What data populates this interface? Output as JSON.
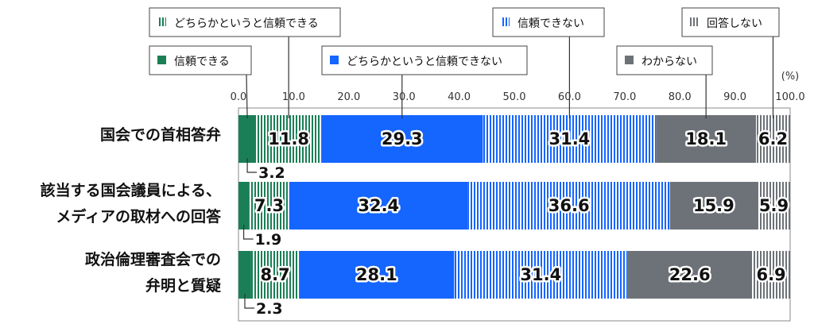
{
  "chart_data": {
    "type": "bar",
    "orientation": "horizontal",
    "stacked": true,
    "unit": "(%)",
    "xlim": [
      0,
      100
    ],
    "x_ticks": [
      "0.0",
      "10.0",
      "20.0",
      "30.0",
      "40.0",
      "50.0",
      "60.0",
      "70.0",
      "80.0",
      "90.0",
      "100.0"
    ],
    "categories": [
      [
        "国会での首相答弁"
      ],
      [
        "該当する国会議員による、",
        "メディアの取材への回答"
      ],
      [
        "政治倫理審査会での",
        "弁明と質疑"
      ]
    ],
    "series": [
      {
        "name": "信頼できる",
        "values": [
          3.2,
          1.9,
          2.3
        ],
        "color": "#1a7f56",
        "pattern": "solid"
      },
      {
        "name": "どちらかというと信頼できる",
        "values": [
          11.8,
          7.3,
          8.7
        ],
        "color": "#1a7f56",
        "pattern": "stripe"
      },
      {
        "name": "どちらかというと信頼できない",
        "values": [
          29.3,
          32.4,
          28.1
        ],
        "color": "#1565ff",
        "pattern": "solid"
      },
      {
        "name": "信頼できない",
        "values": [
          31.4,
          36.6,
          31.4
        ],
        "color": "#1565ff",
        "pattern": "stripe"
      },
      {
        "name": "わからない",
        "values": [
          18.1,
          15.9,
          22.6
        ],
        "color": "#6d7278",
        "pattern": "solid"
      },
      {
        "name": "回答しない",
        "values": [
          6.2,
          5.9,
          6.9
        ],
        "color": "#6d7278",
        "pattern": "stripe"
      }
    ],
    "value_labels": [
      [
        "3.2",
        "11.8",
        "29.3",
        "31.4",
        "18.1",
        "6.2"
      ],
      [
        "1.9",
        "7.3",
        "32.4",
        "36.6",
        "15.9",
        "5.9"
      ],
      [
        "2.3",
        "8.7",
        "28.1",
        "31.4",
        "22.6",
        "6.9"
      ]
    ]
  }
}
